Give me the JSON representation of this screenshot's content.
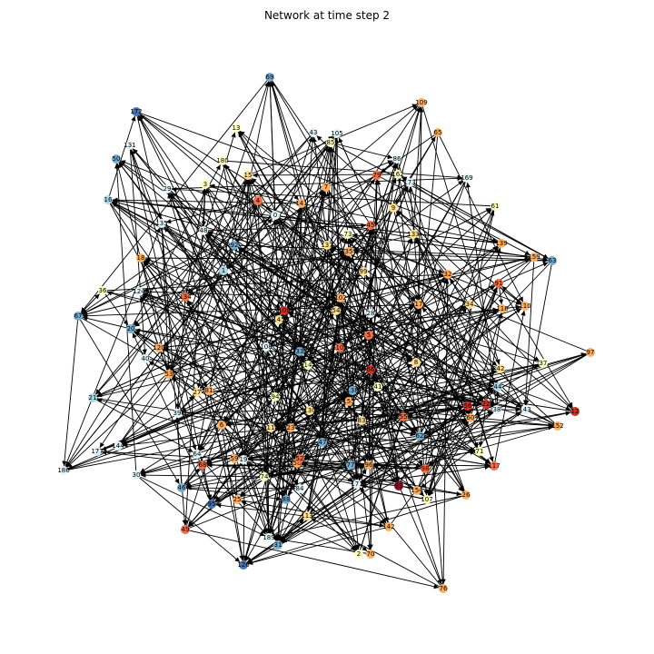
{
  "title": "Network at time step 2",
  "palette": {
    "darkblue": "#313695",
    "blue": "#4575b4",
    "midblue": "#74add1",
    "lightblue": "#abd9e9",
    "paleblue": "#e0f3f8",
    "paleyellow": "#ffffbf",
    "yellow": "#fee090",
    "orange": "#fdae61",
    "darkorange": "#f46d43",
    "red": "#d73027",
    "darkred": "#a50026"
  },
  "nodes": [
    {
      "id": "69",
      "c": "midblue"
    },
    {
      "id": "109",
      "c": "orange"
    },
    {
      "id": "172",
      "c": "blue"
    },
    {
      "id": "13",
      "c": "paleyellow"
    },
    {
      "id": "43",
      "c": "paleblue"
    },
    {
      "id": "105",
      "c": "paleblue"
    },
    {
      "id": "65",
      "c": "orange"
    },
    {
      "id": "131",
      "c": "paleblue"
    },
    {
      "id": "50",
      "c": "midblue"
    },
    {
      "id": "180",
      "c": "paleyellow"
    },
    {
      "id": "85",
      "c": "paleyellow"
    },
    {
      "id": "86",
      "c": "paleblue"
    },
    {
      "id": "162",
      "c": "paleyellow"
    },
    {
      "id": "173",
      "c": "paleblue"
    },
    {
      "id": "169",
      "c": "paleblue"
    },
    {
      "id": "16",
      "c": "lightblue"
    },
    {
      "id": "3",
      "c": "paleyellow"
    },
    {
      "id": "15",
      "c": "yellow"
    },
    {
      "id": "4",
      "c": "darkorange"
    },
    {
      "id": "7",
      "c": "orange"
    },
    {
      "id": "79",
      "c": "darkorange"
    },
    {
      "id": "61",
      "c": "paleyellow"
    },
    {
      "id": "9",
      "c": "yellow"
    },
    {
      "id": "0",
      "c": "paleblue"
    },
    {
      "id": "135",
      "c": "paleblue"
    },
    {
      "id": "48",
      "c": "paleblue"
    },
    {
      "id": "92",
      "c": "midblue"
    },
    {
      "id": "45",
      "c": "darkorange"
    },
    {
      "id": "73",
      "c": "paleyellow"
    },
    {
      "id": "133",
      "c": "yellow"
    },
    {
      "id": "139",
      "c": "orange"
    },
    {
      "id": "159",
      "c": "orange"
    },
    {
      "id": "63",
      "c": "midblue"
    },
    {
      "id": "18",
      "c": "orange"
    },
    {
      "id": "36",
      "c": "paleyellow"
    },
    {
      "id": "124",
      "c": "paleblue"
    },
    {
      "id": "134",
      "c": "darkorange"
    },
    {
      "id": "32",
      "c": "orange"
    },
    {
      "id": "91",
      "c": "darkorange"
    },
    {
      "id": "67",
      "c": "midblue"
    },
    {
      "id": "116",
      "c": "orange"
    },
    {
      "id": "110",
      "c": "orange"
    },
    {
      "id": "97",
      "c": "orange"
    },
    {
      "id": "37",
      "c": "paleyellow"
    },
    {
      "id": "12",
      "c": "red"
    },
    {
      "id": "143",
      "c": "paleblue"
    },
    {
      "id": "152",
      "c": "orange"
    },
    {
      "id": "21",
      "c": "lightblue"
    },
    {
      "id": "177",
      "c": "paleblue"
    },
    {
      "id": "144",
      "c": "paleblue"
    },
    {
      "id": "30",
      "c": "paleblue"
    },
    {
      "id": "186",
      "c": "paleblue"
    },
    {
      "id": "29",
      "c": "paleblue"
    },
    {
      "id": "117",
      "c": "darkorange"
    },
    {
      "id": "71",
      "c": "paleyellow"
    },
    {
      "id": "107",
      "c": "paleyellow"
    },
    {
      "id": "142",
      "c": "orange"
    },
    {
      "id": "2",
      "c": "paleyellow"
    },
    {
      "id": "70",
      "c": "orange"
    },
    {
      "id": "76",
      "c": "orange"
    },
    {
      "id": "31",
      "c": "midblue"
    },
    {
      "id": "126",
      "c": "blue"
    },
    {
      "id": "49",
      "c": "darkorange"
    },
    {
      "id": "89",
      "c": "paleyellow"
    },
    {
      "id": "25",
      "c": "orange"
    },
    {
      "id": "14",
      "c": "paleyellow"
    },
    {
      "id": "33",
      "c": "midblue"
    },
    {
      "id": "41",
      "c": "paleyellow"
    },
    {
      "id": "155",
      "c": "orange"
    },
    {
      "id": "88",
      "c": "midblue"
    },
    {
      "id": "94",
      "c": "paleyellow"
    },
    {
      "id": "99",
      "c": "yellow"
    },
    {
      "id": "28",
      "c": "paleblue"
    },
    {
      "id": "22",
      "c": "red"
    },
    {
      "id": "47",
      "c": "midblue"
    },
    {
      "id": "77",
      "c": "midblue"
    },
    {
      "id": "130",
      "c": "yellow"
    },
    {
      "id": "6",
      "c": "orange"
    },
    {
      "id": "27",
      "c": "yellow"
    },
    {
      "id": "81",
      "c": "orange"
    },
    {
      "id": "11",
      "c": "yellow"
    },
    {
      "id": "96",
      "c": "orange"
    },
    {
      "id": "58",
      "c": "orange"
    },
    {
      "id": "53",
      "c": "orange"
    },
    {
      "id": "93",
      "c": "darkred"
    },
    {
      "id": "56",
      "c": "red"
    },
    {
      "id": "60",
      "c": "orange"
    },
    {
      "id": "54",
      "c": "yellow"
    },
    {
      "id": "102",
      "c": "orange"
    },
    {
      "id": "64",
      "c": "paleblue"
    },
    {
      "id": "100",
      "c": "red"
    },
    {
      "id": "145",
      "c": "yellow"
    },
    {
      "id": "55",
      "c": "darkorange"
    },
    {
      "id": "66",
      "c": "red"
    },
    {
      "id": "20",
      "c": "midblue"
    },
    {
      "id": "108",
      "c": "paleblue"
    },
    {
      "id": "120",
      "c": "orange"
    },
    {
      "id": "40",
      "c": "paleblue"
    },
    {
      "id": "19",
      "c": "paleblue"
    },
    {
      "id": "39",
      "c": "paleblue"
    },
    {
      "id": "23",
      "c": "orange"
    },
    {
      "id": "62",
      "c": "midblue"
    },
    {
      "id": "44",
      "c": "lightblue"
    },
    {
      "id": "171",
      "c": "paleblue"
    },
    {
      "id": "84",
      "c": "paleblue"
    },
    {
      "id": "8",
      "c": "yellow"
    },
    {
      "id": "17",
      "c": "orange"
    },
    {
      "id": "34",
      "c": "yellow"
    },
    {
      "id": "141",
      "c": "orange"
    },
    {
      "id": "98",
      "c": "darkorange"
    },
    {
      "id": "5",
      "c": "darkorange"
    },
    {
      "id": "1",
      "c": "lightblue"
    },
    {
      "id": "10",
      "c": "darkorange"
    },
    {
      "id": "42",
      "c": "yellow"
    },
    {
      "id": "35",
      "c": "orange"
    },
    {
      "id": "83",
      "c": "yellow"
    },
    {
      "id": "138",
      "c": "midblue"
    },
    {
      "id": "52",
      "c": "darkorange"
    },
    {
      "id": "74",
      "c": "paleyellow"
    },
    {
      "id": "59",
      "c": "orange"
    },
    {
      "id": "46",
      "c": "midblue"
    },
    {
      "id": "189",
      "c": "paleblue"
    },
    {
      "id": "154",
      "c": "orange"
    },
    {
      "id": "26",
      "c": "orange"
    },
    {
      "id": "68",
      "c": "darkorange"
    },
    {
      "id": "95",
      "c": "blue"
    },
    {
      "id": "113",
      "c": "yellow"
    },
    {
      "id": "137",
      "c": "yellow"
    },
    {
      "id": "38",
      "c": "paleblue"
    }
  ]
}
